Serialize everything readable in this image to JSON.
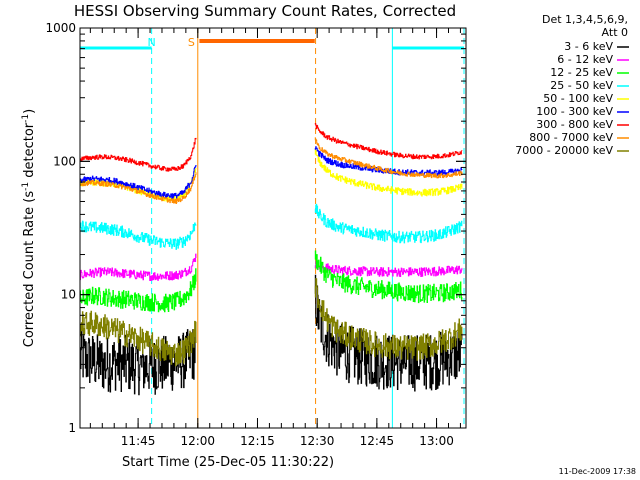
{
  "chart_data": {
    "type": "line",
    "title": "HESSI Observing Summary Count Rates, Corrected",
    "xlabel": "Start Time (25-Dec-05 11:30:22)",
    "ylabel_main": "Corrected Count Rate (s",
    "ylabel_sup1": "-1",
    "ylabel_mid": " detector",
    "ylabel_sup2": "-1",
    "ylabel_end": ")",
    "yscale": "log",
    "xlim_minutes": [
      0,
      97
    ],
    "ylim": [
      1,
      1000
    ],
    "x_ticks": [
      {
        "minute": 14.6,
        "label": "11:45"
      },
      {
        "minute": 29.6,
        "label": "12:00"
      },
      {
        "minute": 44.6,
        "label": "12:15"
      },
      {
        "minute": 59.6,
        "label": "12:30"
      },
      {
        "minute": 74.6,
        "label": "12:45"
      },
      {
        "minute": 89.6,
        "label": "13:00"
      }
    ],
    "y_ticks": [
      {
        "value": 1,
        "label": "1"
      },
      {
        "value": 10,
        "label": "10"
      },
      {
        "value": 100,
        "label": "100"
      },
      {
        "value": 1000,
        "label": "1000"
      }
    ],
    "legend_header": [
      "Det 1,3,4,5,6,9,",
      "Att 0"
    ],
    "legend_position": "right",
    "series": [
      {
        "name": "3 - 6 keV",
        "color": "#000000",
        "pre": [
          [
            0,
            3.4
          ],
          [
            3,
            3.2
          ],
          [
            6,
            3.0
          ],
          [
            9,
            3.1
          ],
          [
            12,
            3.0
          ],
          [
            15,
            2.9
          ],
          [
            18,
            2.9
          ],
          [
            21,
            3.0
          ],
          [
            24,
            3.1
          ],
          [
            26,
            3.2
          ],
          [
            28,
            3.5
          ],
          [
            29.2,
            4.0
          ]
        ],
        "post": [
          [
            59,
            10
          ],
          [
            60,
            6.5
          ],
          [
            62,
            4.8
          ],
          [
            65,
            3.8
          ],
          [
            70,
            3.4
          ],
          [
            75,
            3.2
          ],
          [
            80,
            3.1
          ],
          [
            85,
            3.1
          ],
          [
            90,
            3.2
          ],
          [
            93,
            3.4
          ],
          [
            96,
            3.6
          ]
        ],
        "noise": 0.5
      },
      {
        "name": "6 - 12 keV",
        "color": "#ff00ff",
        "pre": [
          [
            0,
            14
          ],
          [
            3,
            14.5
          ],
          [
            6,
            14.8
          ],
          [
            9,
            14.6
          ],
          [
            12,
            14.3
          ],
          [
            15,
            14.0
          ],
          [
            18,
            13.8
          ],
          [
            21,
            13.8
          ],
          [
            24,
            14.0
          ],
          [
            26,
            14.5
          ],
          [
            28,
            16
          ],
          [
            29.2,
            20
          ]
        ],
        "post": [
          [
            59,
            17
          ],
          [
            60,
            16.5
          ],
          [
            62,
            15.8
          ],
          [
            65,
            15.3
          ],
          [
            70,
            15.0
          ],
          [
            75,
            14.8
          ],
          [
            80,
            14.8
          ],
          [
            85,
            14.8
          ],
          [
            90,
            15.0
          ],
          [
            93,
            15.2
          ],
          [
            96,
            15.5
          ]
        ],
        "noise": 0.08
      },
      {
        "name": "12 - 25 keV",
        "color": "#00ff00",
        "pre": [
          [
            0,
            9.2
          ],
          [
            3,
            9.8
          ],
          [
            6,
            9.7
          ],
          [
            9,
            9.3
          ],
          [
            12,
            9.2
          ],
          [
            15,
            8.9
          ],
          [
            18,
            8.8
          ],
          [
            21,
            8.6
          ],
          [
            24,
            8.8
          ],
          [
            26,
            9.5
          ],
          [
            28,
            11
          ],
          [
            29.2,
            14
          ]
        ],
        "post": [
          [
            59,
            19
          ],
          [
            60,
            17
          ],
          [
            62,
            14
          ],
          [
            65,
            12.5
          ],
          [
            70,
            11.5
          ],
          [
            75,
            11
          ],
          [
            80,
            10.5
          ],
          [
            85,
            10.2
          ],
          [
            90,
            10.2
          ],
          [
            93,
            10.5
          ],
          [
            96,
            10.8
          ]
        ],
        "noise": 0.16
      },
      {
        "name": "25 - 50 keV",
        "color": "#00ffff",
        "pre": [
          [
            0,
            33
          ],
          [
            3,
            32
          ],
          [
            6,
            31.5
          ],
          [
            9,
            30.5
          ],
          [
            12,
            29
          ],
          [
            15,
            27
          ],
          [
            18,
            25.5
          ],
          [
            21,
            24.5
          ],
          [
            24,
            24
          ],
          [
            26,
            25
          ],
          [
            28,
            29
          ],
          [
            29.2,
            36
          ]
        ],
        "post": [
          [
            59,
            45
          ],
          [
            60,
            40
          ],
          [
            62,
            35
          ],
          [
            65,
            32
          ],
          [
            70,
            30
          ],
          [
            75,
            28
          ],
          [
            80,
            27
          ],
          [
            85,
            27
          ],
          [
            90,
            28
          ],
          [
            93,
            30
          ],
          [
            96,
            33
          ]
        ],
        "noise": 0.1
      },
      {
        "name": "50 - 100 keV",
        "color": "#ffff00",
        "pre": [
          [
            0,
            68
          ],
          [
            3,
            70
          ],
          [
            6,
            69
          ],
          [
            9,
            67
          ],
          [
            12,
            64
          ],
          [
            15,
            60
          ],
          [
            18,
            56
          ],
          [
            21,
            53
          ],
          [
            24,
            52
          ],
          [
            26,
            55
          ],
          [
            28,
            68
          ],
          [
            29.2,
            90
          ]
        ],
        "post": [
          [
            59,
            120
          ],
          [
            60,
            100
          ],
          [
            62,
            85
          ],
          [
            65,
            75
          ],
          [
            70,
            68
          ],
          [
            75,
            63
          ],
          [
            80,
            60
          ],
          [
            85,
            58
          ],
          [
            90,
            59
          ],
          [
            93,
            61
          ],
          [
            96,
            64
          ]
        ],
        "noise": 0.06
      },
      {
        "name": "100 - 300 keV",
        "color": "#0000ff",
        "pre": [
          [
            0,
            72
          ],
          [
            3,
            74
          ],
          [
            6,
            73
          ],
          [
            9,
            71
          ],
          [
            12,
            67
          ],
          [
            15,
            63
          ],
          [
            18,
            59
          ],
          [
            21,
            56
          ],
          [
            24,
            55
          ],
          [
            26,
            58
          ],
          [
            28,
            72
          ],
          [
            29.2,
            95
          ]
        ],
        "post": [
          [
            59,
            130
          ],
          [
            60,
            115
          ],
          [
            62,
            102
          ],
          [
            65,
            95
          ],
          [
            70,
            90
          ],
          [
            75,
            86
          ],
          [
            80,
            83
          ],
          [
            85,
            82
          ],
          [
            90,
            82
          ],
          [
            93,
            83
          ],
          [
            96,
            86
          ]
        ],
        "noise": 0.05
      },
      {
        "name": "300 - 800 keV",
        "color": "#ff0000",
        "pre": [
          [
            0,
            104
          ],
          [
            3,
            107
          ],
          [
            6,
            108
          ],
          [
            9,
            106
          ],
          [
            12,
            102
          ],
          [
            15,
            97
          ],
          [
            18,
            92
          ],
          [
            21,
            88
          ],
          [
            24,
            87
          ],
          [
            26,
            92
          ],
          [
            28,
            112
          ],
          [
            29.2,
            155
          ]
        ],
        "post": [
          [
            59,
            190
          ],
          [
            60,
            170
          ],
          [
            62,
            152
          ],
          [
            65,
            140
          ],
          [
            70,
            128
          ],
          [
            75,
            118
          ],
          [
            80,
            111
          ],
          [
            85,
            108
          ],
          [
            90,
            109
          ],
          [
            93,
            112
          ],
          [
            96,
            118
          ]
        ],
        "noise": 0.04
      },
      {
        "name": "800 - 7000 keV",
        "color": "#ff8c00",
        "pre": [
          [
            0,
            68
          ],
          [
            3,
            69
          ],
          [
            6,
            68
          ],
          [
            9,
            66
          ],
          [
            12,
            63
          ],
          [
            15,
            59
          ],
          [
            18,
            55
          ],
          [
            21,
            52
          ],
          [
            24,
            50
          ],
          [
            26,
            53
          ],
          [
            28,
            64
          ],
          [
            29.2,
            85
          ]
        ],
        "post": [
          [
            59,
            150
          ],
          [
            60,
            128
          ],
          [
            62,
            114
          ],
          [
            65,
            105
          ],
          [
            70,
            96
          ],
          [
            75,
            88
          ],
          [
            80,
            82
          ],
          [
            85,
            79
          ],
          [
            90,
            78
          ],
          [
            93,
            79
          ],
          [
            96,
            82
          ]
        ],
        "noise": 0.04
      },
      {
        "name": "7000 - 20000 keV",
        "color": "#808000",
        "pre": [
          [
            0,
            6.0
          ],
          [
            3,
            6.1
          ],
          [
            6,
            5.8
          ],
          [
            9,
            5.4
          ],
          [
            12,
            5.0
          ],
          [
            15,
            4.6
          ],
          [
            18,
            4.2
          ],
          [
            21,
            3.8
          ],
          [
            24,
            3.6
          ],
          [
            26,
            3.8
          ],
          [
            28,
            4.5
          ],
          [
            29.2,
            5.5
          ]
        ],
        "post": [
          [
            59,
            12
          ],
          [
            60,
            9
          ],
          [
            62,
            6.5
          ],
          [
            65,
            5.2
          ],
          [
            70,
            4.6
          ],
          [
            75,
            4.2
          ],
          [
            80,
            4.0
          ],
          [
            85,
            4.0
          ],
          [
            90,
            4.3
          ],
          [
            93,
            4.8
          ],
          [
            96,
            5.5
          ]
        ],
        "noise": 0.22
      }
    ],
    "night_intervals": [
      [
        0,
        18
      ],
      [
        78.5,
        96.5
      ]
    ],
    "saa_interval": [
      30,
      59
    ],
    "vertical_lines": [
      {
        "minute": 0,
        "color": "#00ffff",
        "style": "solid"
      },
      {
        "minute": 18,
        "color": "#00ffff",
        "style": "dashed"
      },
      {
        "minute": 29.6,
        "color": "#ff8c00",
        "style": "solid"
      },
      {
        "minute": 59.2,
        "color": "#ff8c00",
        "style": "dashed"
      },
      {
        "minute": 78.5,
        "color": "#00ffff",
        "style": "solid"
      },
      {
        "minute": 96.5,
        "color": "#00ffff",
        "style": "dashed"
      }
    ],
    "markers": [
      {
        "minute": 18,
        "text": "N",
        "color": "#00ffff"
      },
      {
        "minute": 28,
        "text": "S",
        "color": "#ff8c00"
      }
    ],
    "footer_stamp": "11-Dec-2009 17:38"
  }
}
